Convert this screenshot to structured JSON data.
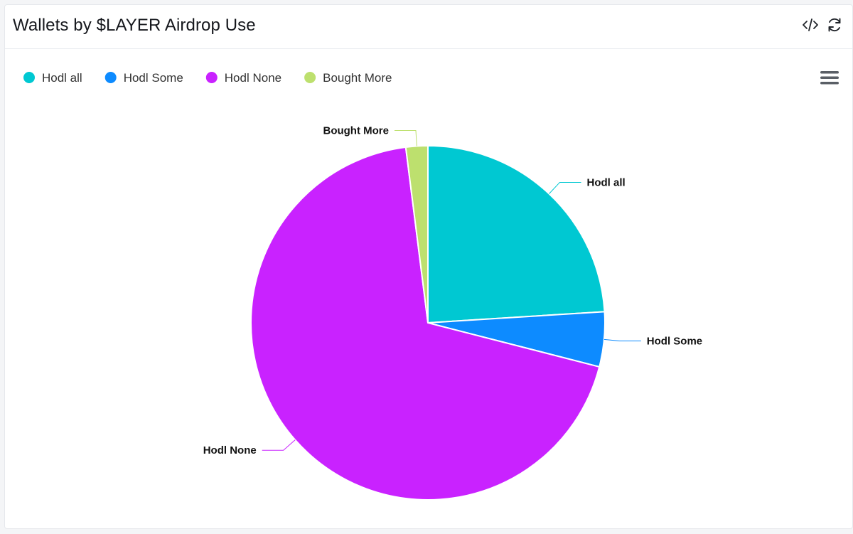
{
  "header": {
    "title": "Wallets by $LAYER Airdrop Use",
    "embed_icon": "code-icon",
    "refresh_icon": "refresh-icon"
  },
  "menu_icon": "hamburger-menu-icon",
  "chart_data": {
    "type": "pie",
    "title": "",
    "legend_placement": "top-left",
    "categories": [
      "Hodl all",
      "Hodl Some",
      "Hodl None",
      "Bought More"
    ],
    "values": [
      24,
      5,
      69,
      2
    ],
    "colors": [
      "#00c8d2",
      "#0d8bff",
      "#c922ff",
      "#bde06e"
    ]
  }
}
